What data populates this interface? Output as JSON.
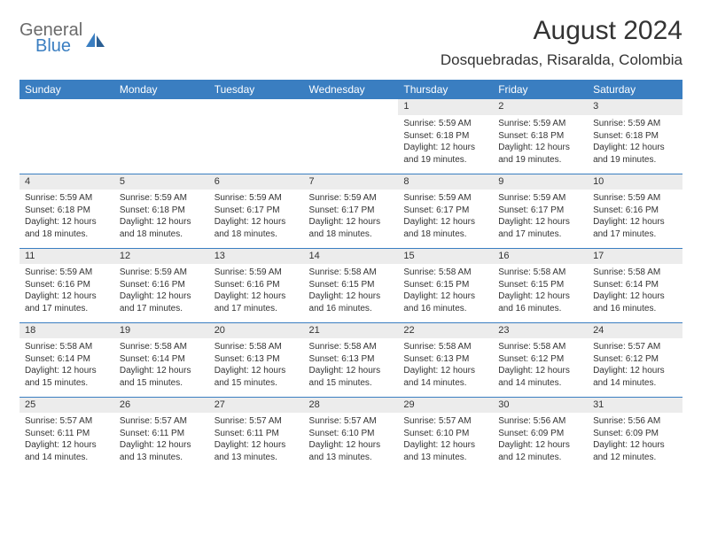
{
  "brand": {
    "top": "General",
    "bottom": "Blue"
  },
  "title": "August 2024",
  "location": "Dosquebradas, Risaralda, Colombia",
  "colors": {
    "header_bg": "#3a7ec1",
    "daynum_bg": "#ececec",
    "rule": "#3a7ec1",
    "text": "#333333",
    "logo_gray": "#6b6b6b"
  },
  "day_headers": [
    "Sunday",
    "Monday",
    "Tuesday",
    "Wednesday",
    "Thursday",
    "Friday",
    "Saturday"
  ],
  "weeks": [
    [
      null,
      null,
      null,
      null,
      {
        "n": "1",
        "sr": "5:59 AM",
        "ss": "6:18 PM",
        "dl": "12 hours and 19 minutes."
      },
      {
        "n": "2",
        "sr": "5:59 AM",
        "ss": "6:18 PM",
        "dl": "12 hours and 19 minutes."
      },
      {
        "n": "3",
        "sr": "5:59 AM",
        "ss": "6:18 PM",
        "dl": "12 hours and 19 minutes."
      }
    ],
    [
      {
        "n": "4",
        "sr": "5:59 AM",
        "ss": "6:18 PM",
        "dl": "12 hours and 18 minutes."
      },
      {
        "n": "5",
        "sr": "5:59 AM",
        "ss": "6:18 PM",
        "dl": "12 hours and 18 minutes."
      },
      {
        "n": "6",
        "sr": "5:59 AM",
        "ss": "6:17 PM",
        "dl": "12 hours and 18 minutes."
      },
      {
        "n": "7",
        "sr": "5:59 AM",
        "ss": "6:17 PM",
        "dl": "12 hours and 18 minutes."
      },
      {
        "n": "8",
        "sr": "5:59 AM",
        "ss": "6:17 PM",
        "dl": "12 hours and 18 minutes."
      },
      {
        "n": "9",
        "sr": "5:59 AM",
        "ss": "6:17 PM",
        "dl": "12 hours and 17 minutes."
      },
      {
        "n": "10",
        "sr": "5:59 AM",
        "ss": "6:16 PM",
        "dl": "12 hours and 17 minutes."
      }
    ],
    [
      {
        "n": "11",
        "sr": "5:59 AM",
        "ss": "6:16 PM",
        "dl": "12 hours and 17 minutes."
      },
      {
        "n": "12",
        "sr": "5:59 AM",
        "ss": "6:16 PM",
        "dl": "12 hours and 17 minutes."
      },
      {
        "n": "13",
        "sr": "5:59 AM",
        "ss": "6:16 PM",
        "dl": "12 hours and 17 minutes."
      },
      {
        "n": "14",
        "sr": "5:58 AM",
        "ss": "6:15 PM",
        "dl": "12 hours and 16 minutes."
      },
      {
        "n": "15",
        "sr": "5:58 AM",
        "ss": "6:15 PM",
        "dl": "12 hours and 16 minutes."
      },
      {
        "n": "16",
        "sr": "5:58 AM",
        "ss": "6:15 PM",
        "dl": "12 hours and 16 minutes."
      },
      {
        "n": "17",
        "sr": "5:58 AM",
        "ss": "6:14 PM",
        "dl": "12 hours and 16 minutes."
      }
    ],
    [
      {
        "n": "18",
        "sr": "5:58 AM",
        "ss": "6:14 PM",
        "dl": "12 hours and 15 minutes."
      },
      {
        "n": "19",
        "sr": "5:58 AM",
        "ss": "6:14 PM",
        "dl": "12 hours and 15 minutes."
      },
      {
        "n": "20",
        "sr": "5:58 AM",
        "ss": "6:13 PM",
        "dl": "12 hours and 15 minutes."
      },
      {
        "n": "21",
        "sr": "5:58 AM",
        "ss": "6:13 PM",
        "dl": "12 hours and 15 minutes."
      },
      {
        "n": "22",
        "sr": "5:58 AM",
        "ss": "6:13 PM",
        "dl": "12 hours and 14 minutes."
      },
      {
        "n": "23",
        "sr": "5:58 AM",
        "ss": "6:12 PM",
        "dl": "12 hours and 14 minutes."
      },
      {
        "n": "24",
        "sr": "5:57 AM",
        "ss": "6:12 PM",
        "dl": "12 hours and 14 minutes."
      }
    ],
    [
      {
        "n": "25",
        "sr": "5:57 AM",
        "ss": "6:11 PM",
        "dl": "12 hours and 14 minutes."
      },
      {
        "n": "26",
        "sr": "5:57 AM",
        "ss": "6:11 PM",
        "dl": "12 hours and 13 minutes."
      },
      {
        "n": "27",
        "sr": "5:57 AM",
        "ss": "6:11 PM",
        "dl": "12 hours and 13 minutes."
      },
      {
        "n": "28",
        "sr": "5:57 AM",
        "ss": "6:10 PM",
        "dl": "12 hours and 13 minutes."
      },
      {
        "n": "29",
        "sr": "5:57 AM",
        "ss": "6:10 PM",
        "dl": "12 hours and 13 minutes."
      },
      {
        "n": "30",
        "sr": "5:56 AM",
        "ss": "6:09 PM",
        "dl": "12 hours and 12 minutes."
      },
      {
        "n": "31",
        "sr": "5:56 AM",
        "ss": "6:09 PM",
        "dl": "12 hours and 12 minutes."
      }
    ]
  ],
  "labels": {
    "sunrise": "Sunrise:",
    "sunset": "Sunset:",
    "daylight": "Daylight:"
  }
}
